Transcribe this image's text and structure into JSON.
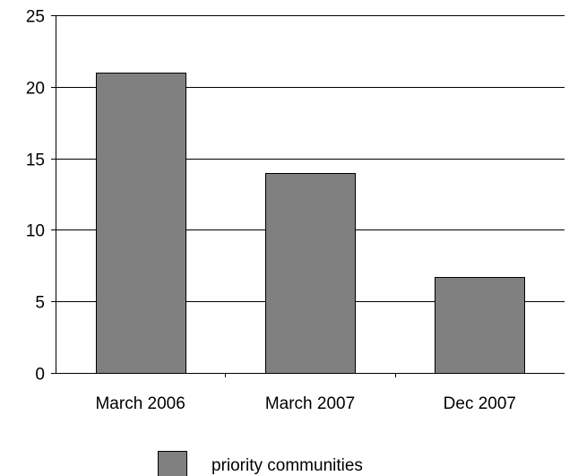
{
  "chart_data": {
    "type": "bar",
    "categories": [
      "March 2006",
      "March 2007",
      "Dec 2007"
    ],
    "series": [
      {
        "name": "priority communities",
        "values": [
          21,
          14,
          6.7
        ],
        "color": "#808080"
      }
    ],
    "ylim": [
      0,
      25
    ],
    "yticks": [
      0,
      5,
      10,
      15,
      20,
      25
    ],
    "grid": true,
    "legend_position": "bottom",
    "title": "",
    "xlabel": "",
    "ylabel": ""
  }
}
